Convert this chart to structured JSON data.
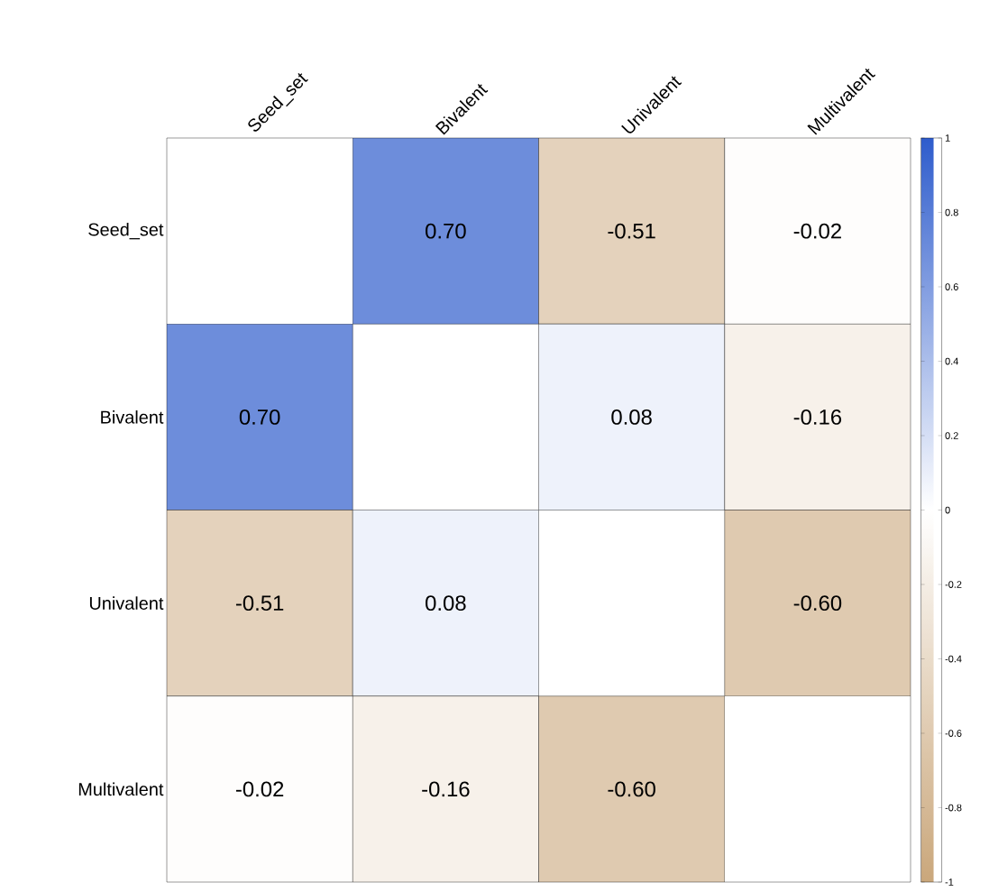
{
  "chart_data": {
    "type": "heatmap",
    "categories": [
      "Seed_set",
      "Bivalent",
      "Univalent",
      "Multivalent"
    ],
    "y_categories": [
      "Seed_set",
      "Bivalent",
      "Univalent",
      "Multivalent"
    ],
    "cells": [
      [
        null,
        0.7,
        -0.51,
        -0.02
      ],
      [
        0.7,
        null,
        0.08,
        -0.16
      ],
      [
        -0.51,
        0.08,
        null,
        -0.6
      ],
      [
        -0.02,
        -0.16,
        -0.6,
        null
      ]
    ],
    "cell_labels": [
      [
        null,
        "0.70",
        "-0.51",
        "-0.02"
      ],
      [
        "0.70",
        null,
        "0.08",
        "-0.16"
      ],
      [
        "-0.51",
        "0.08",
        null,
        "-0.60"
      ],
      [
        "-0.02",
        "-0.16",
        "-0.60",
        null
      ]
    ],
    "clim": [
      -1,
      1
    ],
    "cticks": [
      -1,
      -0.8,
      -0.6,
      -0.4,
      -0.2,
      0,
      0.2,
      0.4,
      0.6,
      0.8,
      1
    ]
  }
}
